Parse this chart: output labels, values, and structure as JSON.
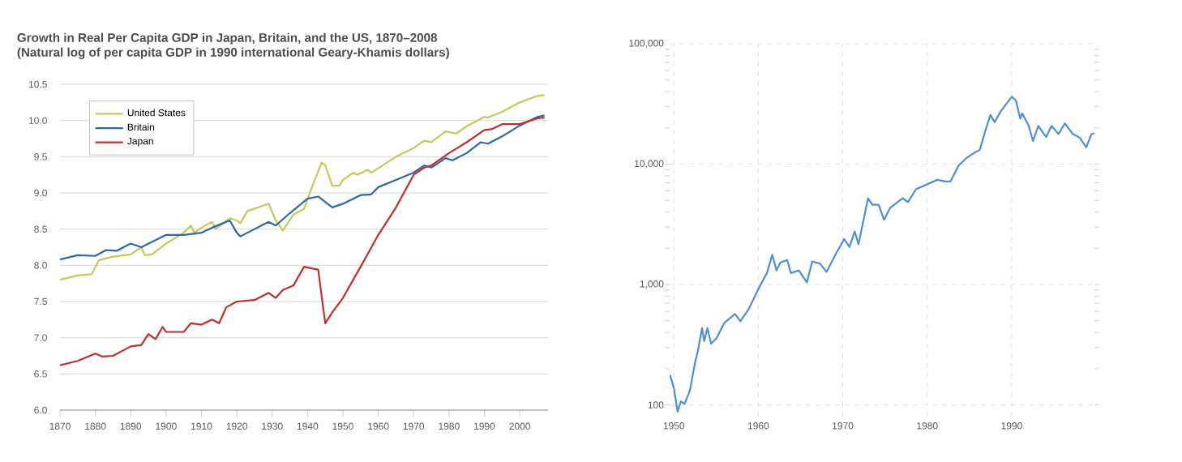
{
  "chart_data": [
    {
      "type": "line",
      "title": "Growth in Real Per Capita GDP in Japan, Britain, and the US, 1870–2008",
      "subtitle": "(Natural log of per capita GDP in 1990 international Geary-Khamis dollars)",
      "xlim": [
        1870,
        2008
      ],
      "xticks": [
        1870,
        1880,
        1890,
        1900,
        1910,
        1920,
        1930,
        1940,
        1950,
        1960,
        1970,
        1980,
        1990,
        2000
      ],
      "ylim": [
        6,
        10.5
      ],
      "yticks": [
        {
          "value": 6,
          "label": "6.0"
        },
        {
          "value": 6.5,
          "label": "6.5"
        },
        {
          "value": 7,
          "label": "7.0"
        },
        {
          "value": 7.5,
          "label": "7.5"
        },
        {
          "value": 8,
          "label": "8.0"
        },
        {
          "value": 8.5,
          "label": "8.5"
        },
        {
          "value": 9,
          "label": "9.0"
        },
        {
          "value": 9.5,
          "label": "9.5"
        },
        {
          "value": 10,
          "label": "10.0"
        },
        {
          "value": 10.5,
          "label": "10.5"
        }
      ],
      "grid": "y",
      "legend": "top left",
      "series": [
        {
          "name": "United States",
          "color": "#c8c85a",
          "x": [
            1870,
            1875,
            1879,
            1881,
            1885,
            1890,
            1893,
            1894,
            1896,
            1900,
            1905,
            1907,
            1908,
            1910,
            1913,
            1914,
            1918,
            1920,
            1921,
            1923,
            1926,
            1929,
            1931,
            1933,
            1936,
            1939,
            1941,
            1944,
            1945,
            1947,
            1949,
            1950,
            1953,
            1954,
            1957,
            1958,
            1960,
            1965,
            1970,
            1973,
            1975,
            1979,
            1982,
            1985,
            1990,
            1991,
            1995,
            2000,
            2005,
            2007
          ],
          "values": [
            7.8,
            7.86,
            7.88,
            8.07,
            8.12,
            8.15,
            8.25,
            8.14,
            8.15,
            8.3,
            8.45,
            8.55,
            8.45,
            8.52,
            8.6,
            8.5,
            8.65,
            8.62,
            8.58,
            8.75,
            8.8,
            8.85,
            8.62,
            8.48,
            8.7,
            8.78,
            9.05,
            9.42,
            9.38,
            9.1,
            9.1,
            9.18,
            9.28,
            9.25,
            9.32,
            9.28,
            9.34,
            9.5,
            9.62,
            9.72,
            9.7,
            9.85,
            9.82,
            9.92,
            10.05,
            10.04,
            10.12,
            10.25,
            10.34,
            10.35
          ]
        },
        {
          "name": "Britain",
          "color": "#2a6aa8",
          "x": [
            1870,
            1875,
            1880,
            1883,
            1886,
            1890,
            1893,
            1900,
            1905,
            1910,
            1913,
            1918,
            1920,
            1921,
            1925,
            1929,
            1931,
            1935,
            1940,
            1943,
            1947,
            1950,
            1955,
            1958,
            1960,
            1965,
            1970,
            1973,
            1975,
            1979,
            1981,
            1985,
            1989,
            1991,
            1995,
            2000,
            2005,
            2007
          ],
          "values": [
            8.08,
            8.14,
            8.13,
            8.21,
            8.2,
            8.3,
            8.25,
            8.42,
            8.42,
            8.45,
            8.52,
            8.62,
            8.45,
            8.4,
            8.5,
            8.6,
            8.55,
            8.72,
            8.92,
            8.95,
            8.8,
            8.85,
            8.97,
            8.98,
            9.08,
            9.18,
            9.28,
            9.38,
            9.35,
            9.48,
            9.45,
            9.55,
            9.7,
            9.68,
            9.78,
            9.93,
            10.05,
            10.07
          ]
        },
        {
          "name": "Japan",
          "color": "#c0302a",
          "x": [
            1870,
            1875,
            1880,
            1882,
            1885,
            1890,
            1893,
            1895,
            1897,
            1899,
            1900,
            1905,
            1907,
            1910,
            1913,
            1915,
            1917,
            1920,
            1925,
            1929,
            1931,
            1933,
            1936,
            1939,
            1942,
            1943,
            1945,
            1947,
            1950,
            1955,
            1960,
            1965,
            1970,
            1973,
            1975,
            1980,
            1985,
            1990,
            1992,
            1995,
            2000,
            2005,
            2007
          ],
          "values": [
            6.62,
            6.68,
            6.78,
            6.74,
            6.75,
            6.88,
            6.9,
            7.05,
            6.98,
            7.15,
            7.08,
            7.08,
            7.2,
            7.18,
            7.25,
            7.2,
            7.42,
            7.5,
            7.52,
            7.62,
            7.55,
            7.66,
            7.72,
            7.98,
            7.95,
            7.94,
            7.2,
            7.35,
            7.55,
            7.98,
            8.42,
            8.8,
            9.25,
            9.35,
            9.38,
            9.55,
            9.7,
            9.87,
            9.88,
            9.95,
            9.95,
            10.03,
            10.04
          ]
        }
      ]
    },
    {
      "type": "line",
      "log": "y",
      "grid": true,
      "line_style": "solid",
      "xlim": [
        1949.5,
        1999.8
      ],
      "xticks": [
        1950,
        1960,
        1970,
        1980,
        1990
      ],
      "ylim": [
        80,
        100000
      ],
      "yticks": [
        100,
        {
          "value": 1000,
          "label": "1,000"
        },
        {
          "value": 10000,
          "label": "10,000"
        },
        {
          "value": 100000,
          "label": "100,000"
        }
      ],
      "series": [
        {
          "color": "#4a90d9",
          "x": [
            1949.56,
            1950.0,
            1950.44,
            1950.82,
            1951.26,
            1951.89,
            1952.52,
            1952.83,
            1953.34,
            1953.59,
            1953.97,
            1954.41,
            1955.04,
            1955.98,
            1957.24,
            1957.87,
            1958.82,
            1960.08,
            1961.02,
            1961.65,
            1962.16,
            1962.6,
            1963.42,
            1963.86,
            1964.8,
            1965.75,
            1966.38,
            1967.32,
            1968.08,
            1969.21,
            1970.16,
            1970.79,
            1971.42,
            1971.86,
            1972.99,
            1973.5,
            1974.25,
            1974.88,
            1975.64,
            1977.09,
            1977.72,
            1978.66,
            1981.18,
            1982.13,
            1982.76,
            1983.7,
            1984.65,
            1985.59,
            1986.22,
            1986.85,
            1987.48,
            1987.98,
            1988.74,
            1990.0,
            1990.5,
            1991.01,
            1991.26,
            1992.02,
            1992.52,
            1993.15,
            1994.09,
            1994.72,
            1995.54,
            1996.3,
            1997.24,
            1998.06,
            1998.82,
            1999.45,
            1999.76
          ],
          "values": [
            177,
            138,
            88,
            107,
            102,
            131,
            227,
            278,
            435,
            339,
            435,
            323,
            357,
            481,
            570,
            496,
            618,
            942,
            1246,
            1769,
            1311,
            1522,
            1600,
            1246,
            1311,
            1041,
            1556,
            1490,
            1273,
            1813,
            2388,
            2057,
            2762,
            2161,
            5200,
            4600,
            4600,
            3450,
            4360,
            5200,
            4840,
            6190,
            7410,
            7190,
            7190,
            9700,
            11270,
            12470,
            13100,
            18600,
            25600,
            22300,
            27700,
            36300,
            33800,
            23900,
            26400,
            20800,
            15600,
            20800,
            16800,
            20800,
            17800,
            21800,
            17800,
            16600,
            13800,
            17800,
            18000
          ]
        }
      ]
    }
  ]
}
